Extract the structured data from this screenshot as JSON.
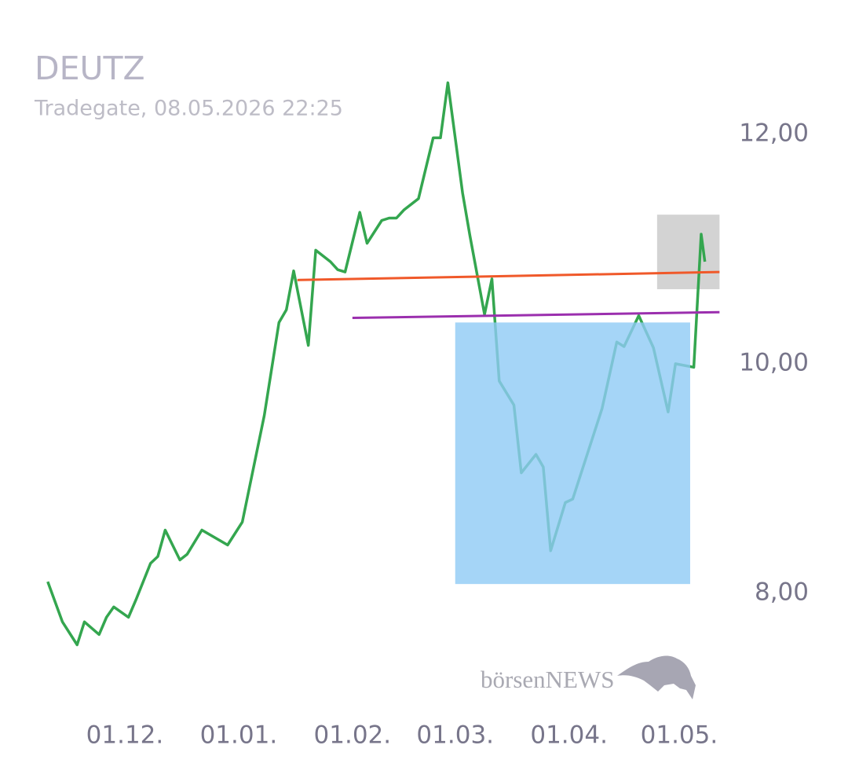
{
  "chart_data": {
    "type": "line",
    "title": "DEUTZ",
    "subtitle": "Tradegate, 08.05.2026 22:25",
    "watermark": "börsenNEWS",
    "color": "#34a64f",
    "x": [
      "10.11.",
      "14.11.",
      "18.11.",
      "20.11.",
      "24.11.",
      "26.11.",
      "28.11.",
      "02.12.",
      "04.12.",
      "08.12.",
      "10.12.",
      "12.12.",
      "16.12.",
      "18.12.",
      "22.12.",
      "29.12.",
      "02.01.",
      "08.01.",
      "12.01.",
      "14.01.",
      "16.01.",
      "20.01.",
      "22.01.",
      "26.01.",
      "28.01.",
      "30.01.",
      "03.02.",
      "05.02.",
      "09.02.",
      "11.02.",
      "13.02.",
      "15.02.",
      "19.02.",
      "23.02.",
      "25.02.",
      "27.02.",
      "03.03.",
      "05.03.",
      "09.03.",
      "11.03.",
      "13.03.",
      "17.03.",
      "19.03.",
      "23.03.",
      "25.03.",
      "27.03.",
      "31.03.",
      "02.04.",
      "10.04.",
      "14.04.",
      "16.04.",
      "20.04.",
      "24.04.",
      "28.04.",
      "30.04.",
      "05.05.",
      "07.05.",
      "08.05."
    ],
    "values": [
      8.1,
      7.75,
      7.55,
      7.75,
      7.64,
      7.79,
      7.88,
      7.79,
      7.94,
      8.26,
      8.32,
      8.55,
      8.29,
      8.34,
      8.55,
      8.42,
      8.62,
      9.55,
      10.36,
      10.47,
      10.81,
      10.16,
      10.99,
      10.89,
      10.82,
      10.8,
      11.32,
      11.05,
      11.25,
      11.27,
      11.27,
      11.34,
      11.44,
      11.97,
      11.97,
      12.45,
      11.49,
      11.12,
      10.43,
      10.74,
      9.85,
      9.64,
      9.05,
      9.21,
      9.1,
      8.37,
      8.79,
      8.82,
      9.61,
      10.19,
      10.15,
      10.42,
      10.14,
      9.58,
      10.0,
      9.97,
      11.13,
      10.89
    ],
    "xlim": [
      "28.10.",
      "16.06."
    ],
    "xticks": [
      "01.12.",
      "01.01.",
      "01.02.",
      "01.03.",
      "01.04.",
      "01.05."
    ],
    "ylim": [
      7.3,
      12.5
    ],
    "yticks": [
      {
        "value": 12,
        "label": "12,00"
      },
      {
        "value": 10,
        "label": "10,00"
      },
      {
        "value": 8,
        "label": "8,00"
      }
    ],
    "shapes": [
      {
        "kind": "rect",
        "x": [
          "25.04.",
          "12.05."
        ],
        "y": [
          11.3,
          10.65
        ],
        "color": "#d3d3d3"
      },
      {
        "kind": "line",
        "x": [
          "17.01.",
          "12.05."
        ],
        "y": [
          10.73,
          10.8
        ],
        "color": "#f0592a"
      },
      {
        "kind": "line",
        "x": [
          "01.02.",
          "12.05."
        ],
        "y": [
          10.4,
          10.45
        ],
        "color": "#9b2fae"
      },
      {
        "kind": "rect",
        "x": [
          "01.03.",
          "04.05."
        ],
        "y": [
          10.36,
          8.08
        ],
        "color": "#8fcbf5"
      }
    ]
  }
}
